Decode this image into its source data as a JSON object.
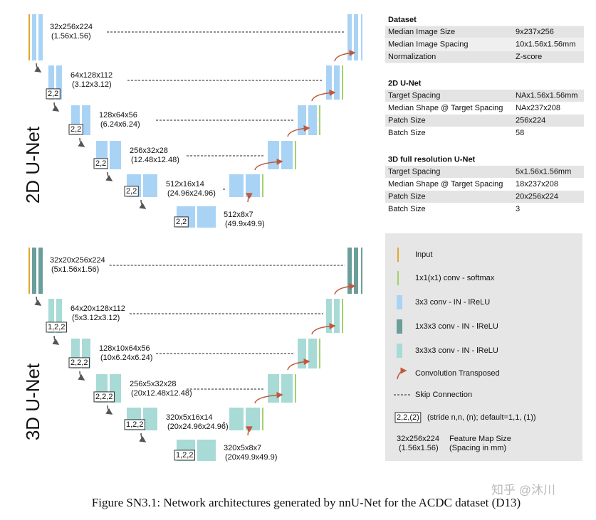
{
  "networks": [
    {
      "title": "2D U-Net",
      "levels": [
        {
          "size": "32x256x224",
          "spacing": "(1.56x1.56)"
        },
        {
          "size": "64x128x112",
          "spacing": "(3.12x3.12)"
        },
        {
          "size": "128x64x56",
          "spacing": "(6.24x6.24)"
        },
        {
          "size": "256x32x28",
          "spacing": "(12.48x12.48)"
        },
        {
          "size": "512x16x14",
          "spacing": "(24.96x24.96)"
        },
        {
          "size": "512x8x7",
          "spacing": "(49.9x49.9)"
        }
      ],
      "strides": [
        "2,2",
        "2,2",
        "2,2",
        "2,2",
        "2,2"
      ]
    },
    {
      "title": "3D U-Net",
      "levels": [
        {
          "size": "32x20x256x224",
          "spacing": "(5x1.56x1.56)"
        },
        {
          "size": "64x20x128x112",
          "spacing": "(5x3.12x3.12)"
        },
        {
          "size": "128x10x64x56",
          "spacing": "(10x6.24x6.24)"
        },
        {
          "size": "256x5x32x28",
          "spacing": "(20x12.48x12.48)"
        },
        {
          "size": "320x5x16x14",
          "spacing": "(20x24.96x24.96)"
        },
        {
          "size": "320x5x8x7",
          "spacing": "(20x49.9x49.9)"
        }
      ],
      "strides": [
        "1,2,2",
        "2,2,2",
        "2,2,2",
        "1,2,2",
        "1,2,2"
      ]
    }
  ],
  "tables": [
    {
      "title": "Dataset",
      "rows": [
        [
          "Median Image Size",
          "9x237x256"
        ],
        [
          "Median Image Spacing",
          "10x1.56x1.56mm"
        ],
        [
          "Normalization",
          "Z-score"
        ]
      ]
    },
    {
      "title": "2D U-Net",
      "rows": [
        [
          "Target Spacing",
          "NAx1.56x1.56mm"
        ],
        [
          "Median Shape @ Target Spacing",
          "NAx237x208"
        ],
        [
          "Patch Size",
          "256x224"
        ],
        [
          "Batch Size",
          "58"
        ]
      ]
    },
    {
      "title": "3D full resolution U-Net",
      "rows": [
        [
          "Target Spacing",
          "5x1.56x1.56mm"
        ],
        [
          "Median Shape @ Target Spacing",
          "18x237x208"
        ],
        [
          "Patch Size",
          "20x256x224"
        ],
        [
          "Batch Size",
          "3"
        ]
      ]
    }
  ],
  "legend": [
    "Input",
    "1x1(x1) conv - softmax",
    "3x3 conv - IN - lReLU",
    "1x3x3 conv - IN - lReLU",
    "3x3x3 conv - IN - lReLU",
    "Convolution Transposed",
    "Skip Connection"
  ],
  "legend_stride": {
    "box": "2,2,(2)",
    "text": "(stride n,n, (n); default=1,1, (1))"
  },
  "legend_fmap": {
    "size": "32x256x224",
    "spacing": "(1.56x1.56)",
    "text": "Feature Map Size",
    "text2": "(Spacing in mm)"
  },
  "caption": "Figure SN3.1: Network architectures generated by nnU-Net for the ACDC dataset (D13)",
  "watermark": "知乎 @沐川"
}
